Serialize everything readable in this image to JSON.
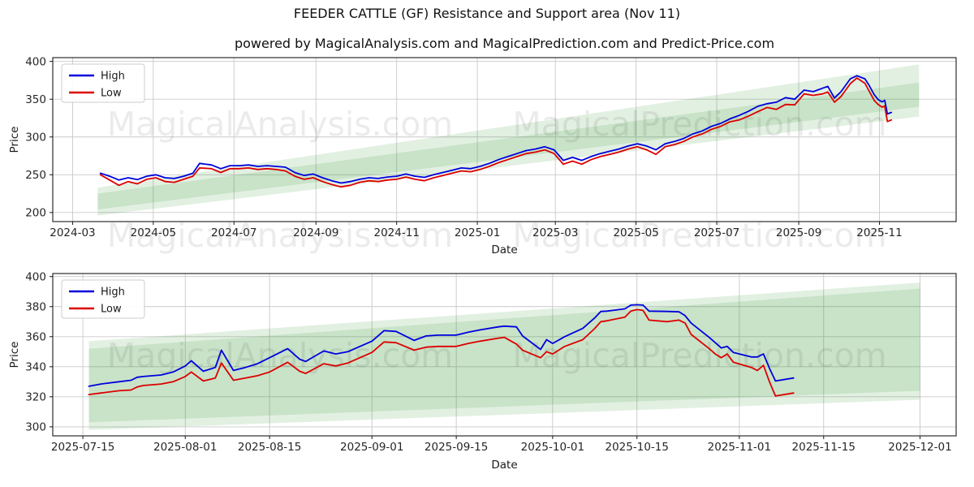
{
  "title": "FEEDER CATTLE (GF) Resistance and Support area (Nov 11)",
  "subtitle": "powered by MagicalAnalysis.com and MagicalPrediction.com and Predict-Price.com",
  "watermark": {
    "left": "MagicalAnalysis.com",
    "right": "MagicalPrediction.com"
  },
  "colors": {
    "high": "#0000dd",
    "low": "#dd0000",
    "band": "rgba(34,139,34,0.13)",
    "grid": "#c9c9c9",
    "axis": "#1a1a1a"
  },
  "chart_data": [
    {
      "type": "line",
      "name": "top-chart",
      "xlabel": "Date",
      "ylabel": "Price",
      "legend": [
        "High",
        "Low"
      ],
      "grid": true,
      "x_domain": [
        "2024-02-15",
        "2025-12-29"
      ],
      "ylim": [
        188,
        405
      ],
      "yticks": [
        200,
        250,
        300,
        350,
        400
      ],
      "xticks": [
        {
          "d": "2024-03-01",
          "label": "2024-03"
        },
        {
          "d": "2024-05-01",
          "label": "2024-05"
        },
        {
          "d": "2024-07-01",
          "label": "2024-07"
        },
        {
          "d": "2024-09-01",
          "label": "2024-09"
        },
        {
          "d": "2024-11-01",
          "label": "2024-11"
        },
        {
          "d": "2025-01-01",
          "label": "2025-01"
        },
        {
          "d": "2025-03-01",
          "label": "2025-03"
        },
        {
          "d": "2025-05-01",
          "label": "2025-05"
        },
        {
          "d": "2025-07-01",
          "label": "2025-07"
        },
        {
          "d": "2025-09-01",
          "label": "2025-09"
        },
        {
          "d": "2025-11-01",
          "label": "2025-11"
        }
      ],
      "bands": [
        {
          "x_start": "2024-03-20",
          "x_end": "2025-12-01",
          "start": [
            204,
            233
          ],
          "end": [
            340,
            396
          ]
        },
        {
          "x_start": "2024-03-20",
          "x_end": "2025-12-01",
          "start": [
            196,
            225
          ],
          "end": [
            327,
            372
          ]
        }
      ],
      "x": [
        "2024-03-22",
        "2024-03-29",
        "2024-04-05",
        "2024-04-12",
        "2024-04-19",
        "2024-04-26",
        "2024-05-03",
        "2024-05-10",
        "2024-05-17",
        "2024-05-24",
        "2024-05-31",
        "2024-06-05",
        "2024-06-14",
        "2024-06-21",
        "2024-06-28",
        "2024-07-05",
        "2024-07-12",
        "2024-07-19",
        "2024-07-26",
        "2024-08-02",
        "2024-08-09",
        "2024-08-16",
        "2024-08-23",
        "2024-08-30",
        "2024-09-06",
        "2024-09-13",
        "2024-09-20",
        "2024-09-27",
        "2024-10-04",
        "2024-10-11",
        "2024-10-18",
        "2024-10-25",
        "2024-11-01",
        "2024-11-08",
        "2024-11-15",
        "2024-11-22",
        "2024-11-29",
        "2024-12-06",
        "2024-12-13",
        "2024-12-20",
        "2024-12-27",
        "2025-01-03",
        "2025-01-10",
        "2025-01-17",
        "2025-01-24",
        "2025-01-31",
        "2025-02-07",
        "2025-02-14",
        "2025-02-21",
        "2025-02-28",
        "2025-03-07",
        "2025-03-14",
        "2025-03-21",
        "2025-03-28",
        "2025-04-04",
        "2025-04-11",
        "2025-04-18",
        "2025-04-25",
        "2025-05-02",
        "2025-05-09",
        "2025-05-16",
        "2025-05-23",
        "2025-05-30",
        "2025-06-06",
        "2025-06-13",
        "2025-06-20",
        "2025-06-27",
        "2025-07-04",
        "2025-07-11",
        "2025-07-18",
        "2025-07-25",
        "2025-08-01",
        "2025-08-08",
        "2025-08-15",
        "2025-08-22",
        "2025-08-29",
        "2025-09-05",
        "2025-09-12",
        "2025-09-19",
        "2025-09-23",
        "2025-09-28",
        "2025-10-03",
        "2025-10-10",
        "2025-10-15",
        "2025-10-21",
        "2025-10-24",
        "2025-10-28",
        "2025-10-31",
        "2025-11-03",
        "2025-11-05",
        "2025-11-07",
        "2025-11-10"
      ],
      "series": [
        {
          "name": "High",
          "color_key": "high",
          "values": [
            252,
            248,
            243,
            246,
            243.5,
            248,
            250,
            246,
            245,
            248,
            252,
            265,
            263,
            258,
            262,
            262,
            263,
            261,
            262,
            261,
            260,
            253,
            249,
            251,
            246,
            242,
            239,
            241,
            244,
            246,
            245,
            247,
            248,
            251,
            248,
            246.5,
            250,
            253,
            256,
            259,
            258,
            261,
            265,
            270,
            274,
            278,
            282,
            284,
            287,
            283,
            269,
            273,
            269,
            274,
            278,
            281,
            284,
            288,
            291,
            288,
            283,
            291,
            294,
            298,
            304,
            308,
            314,
            318,
            324,
            328.5,
            334,
            340.5,
            344,
            346,
            352,
            350,
            362,
            360,
            364.5,
            367,
            351.5,
            360,
            377,
            381,
            377,
            369,
            356,
            349.5,
            346.5,
            348.5,
            330.5,
            332.5
          ]
        },
        {
          "name": "Low",
          "color_key": "low",
          "values": [
            250,
            243,
            236,
            241,
            238,
            244,
            246,
            241,
            240,
            244,
            248,
            259,
            258,
            253,
            258,
            258,
            259,
            257,
            258,
            257,
            255,
            248,
            244,
            246,
            241,
            237,
            234,
            236,
            240,
            242,
            241,
            243,
            244,
            247,
            244,
            242,
            246,
            249,
            252,
            255,
            254,
            257,
            261,
            266,
            270,
            274,
            278,
            280,
            283,
            278,
            264,
            268,
            264,
            270,
            274,
            277,
            280,
            284,
            287,
            283,
            277,
            287,
            290,
            294,
            300,
            304,
            310,
            314,
            320,
            322.5,
            327.5,
            333.5,
            339,
            336.5,
            343,
            342.5,
            357,
            355,
            357,
            359.5,
            346,
            353.5,
            370.5,
            378,
            371,
            361.5,
            348.5,
            343,
            339.5,
            341,
            320.5,
            322.5
          ]
        }
      ]
    },
    {
      "type": "line",
      "name": "bottom-chart",
      "xlabel": "Date",
      "ylabel": "Price",
      "legend": [
        "High",
        "Low"
      ],
      "grid": true,
      "x_domain": [
        "2025-07-10",
        "2025-12-07"
      ],
      "ylim": [
        294,
        402
      ],
      "yticks": [
        300,
        320,
        340,
        360,
        380,
        400
      ],
      "xticks": [
        {
          "d": "2025-07-15",
          "label": "2025-07-15"
        },
        {
          "d": "2025-08-01",
          "label": "2025-08-01"
        },
        {
          "d": "2025-08-15",
          "label": "2025-08-15"
        },
        {
          "d": "2025-09-01",
          "label": "2025-09-01"
        },
        {
          "d": "2025-09-15",
          "label": "2025-09-15"
        },
        {
          "d": "2025-10-01",
          "label": "2025-10-01"
        },
        {
          "d": "2025-10-15",
          "label": "2025-10-15"
        },
        {
          "d": "2025-11-01",
          "label": "2025-11-01"
        },
        {
          "d": "2025-11-15",
          "label": "2025-11-15"
        },
        {
          "d": "2025-12-01",
          "label": "2025-12-01"
        }
      ],
      "bands": [
        {
          "x_start": "2025-07-16",
          "x_end": "2025-12-01",
          "start": [
            303,
            357
          ],
          "end": [
            324,
            396
          ]
        },
        {
          "x_start": "2025-07-16",
          "x_end": "2025-12-01",
          "start": [
            298,
            352
          ],
          "end": [
            318,
            392
          ]
        }
      ],
      "x": [
        "2025-07-16",
        "2025-07-18",
        "2025-07-21",
        "2025-07-23",
        "2025-07-24",
        "2025-07-25",
        "2025-07-28",
        "2025-07-30",
        "2025-08-01",
        "2025-08-02",
        "2025-08-04",
        "2025-08-06",
        "2025-08-07",
        "2025-08-09",
        "2025-08-11",
        "2025-08-13",
        "2025-08-15",
        "2025-08-18",
        "2025-08-20",
        "2025-08-21",
        "2025-08-24",
        "2025-08-26",
        "2025-08-28",
        "2025-09-01",
        "2025-09-03",
        "2025-09-05",
        "2025-09-08",
        "2025-09-10",
        "2025-09-12",
        "2025-09-15",
        "2025-09-17",
        "2025-09-19",
        "2025-09-22",
        "2025-09-23",
        "2025-09-25",
        "2025-09-26",
        "2025-09-29",
        "2025-09-30",
        "2025-10-01",
        "2025-10-03",
        "2025-10-06",
        "2025-10-08",
        "2025-10-09",
        "2025-10-10",
        "2025-10-13",
        "2025-10-14",
        "2025-10-15",
        "2025-10-16",
        "2025-10-17",
        "2025-10-20",
        "2025-10-22",
        "2025-10-23",
        "2025-10-24",
        "2025-10-27",
        "2025-10-28",
        "2025-10-29",
        "2025-10-30",
        "2025-10-31",
        "2025-11-03",
        "2025-11-04",
        "2025-11-05",
        "2025-11-06",
        "2025-11-07",
        "2025-11-10"
      ],
      "series": [
        {
          "name": "High",
          "color_key": "high",
          "values": [
            327,
            328.5,
            330,
            331,
            333,
            333.5,
            334.5,
            336.5,
            340.5,
            344,
            337,
            339.5,
            351,
            337.5,
            339.5,
            342,
            346,
            352,
            345,
            343.5,
            350.5,
            348.5,
            350,
            357,
            364,
            363.5,
            357.5,
            360.5,
            361,
            361,
            363,
            364.5,
            366.5,
            367,
            366.5,
            360.5,
            351.5,
            358,
            355.5,
            360,
            365.5,
            372.5,
            376.8,
            377,
            378.5,
            381,
            381.2,
            381,
            377,
            376.8,
            376.5,
            374,
            369,
            359.5,
            356,
            352.5,
            353.5,
            349.5,
            346.5,
            346.5,
            348.5,
            339,
            330.5,
            332.5
          ]
        },
        {
          "name": "Low",
          "color_key": "low",
          "values": [
            321.5,
            322.5,
            324,
            324.5,
            326.5,
            327.5,
            328.5,
            330,
            333.5,
            336.5,
            330.5,
            332.5,
            342.5,
            331,
            332.5,
            334,
            336.5,
            343,
            337,
            335.5,
            342,
            340.5,
            342.5,
            349.5,
            356.5,
            356,
            351,
            353,
            353.5,
            353.5,
            355.5,
            357,
            359,
            359.5,
            355,
            351,
            346,
            350,
            348.5,
            353.5,
            358,
            365.5,
            370,
            370.5,
            373,
            377,
            378,
            377.5,
            371,
            370,
            371,
            369,
            361.5,
            352,
            348.5,
            346,
            348.5,
            343,
            339.5,
            337.5,
            341,
            330,
            320.5,
            322.5
          ]
        }
      ]
    }
  ]
}
